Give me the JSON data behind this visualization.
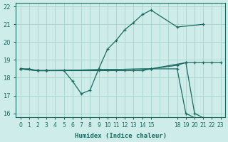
{
  "xlabel": "Humidex (Indice chaleur)",
  "ylabel": "",
  "bg_color": "#ceecea",
  "grid_color": "#aad6d2",
  "line_color": "#1a6b60",
  "xlim": [
    -0.5,
    23.5
  ],
  "ylim": [
    15.8,
    22.2
  ],
  "xtick_vals": [
    0,
    1,
    2,
    3,
    4,
    5,
    6,
    7,
    8,
    9,
    10,
    11,
    12,
    13,
    14,
    15,
    18,
    19,
    20,
    21,
    22,
    23
  ],
  "ytick_vals": [
    16,
    17,
    18,
    19,
    20,
    21,
    22
  ],
  "all_x_grid": [
    0,
    1,
    2,
    3,
    4,
    5,
    6,
    7,
    8,
    9,
    10,
    11,
    12,
    13,
    14,
    15,
    16,
    17,
    18,
    19,
    20,
    21,
    22,
    23
  ],
  "lines": [
    {
      "x": [
        0,
        1,
        2,
        3,
        5,
        9,
        10,
        11,
        12,
        13,
        14,
        15,
        18,
        19,
        20,
        21,
        22,
        23
      ],
      "y": [
        18.5,
        18.5,
        18.4,
        18.4,
        18.4,
        18.4,
        18.4,
        18.4,
        18.4,
        18.4,
        18.4,
        18.5,
        18.7,
        18.85,
        18.85,
        18.85,
        18.85,
        18.85
      ],
      "style": "-",
      "marker": "+"
    },
    {
      "x": [
        0,
        2,
        3,
        5,
        6,
        7,
        8,
        9,
        10,
        11,
        12,
        13,
        14,
        15,
        18,
        21
      ],
      "y": [
        18.5,
        18.4,
        18.4,
        18.4,
        17.8,
        17.1,
        17.3,
        18.5,
        19.6,
        20.1,
        20.7,
        21.1,
        21.55,
        21.8,
        20.85,
        21.0
      ],
      "style": "-",
      "marker": "+"
    },
    {
      "x": [
        0,
        2,
        3,
        15,
        19,
        20,
        21,
        22,
        23
      ],
      "y": [
        18.5,
        18.4,
        18.4,
        18.5,
        18.85,
        16.0,
        15.75,
        15.7,
        15.65
      ],
      "style": "-",
      "marker": "+"
    },
    {
      "x": [
        0,
        2,
        3,
        15,
        18,
        19,
        20,
        21,
        22,
        23
      ],
      "y": [
        18.5,
        18.4,
        18.4,
        18.5,
        18.5,
        16.0,
        15.75,
        15.7,
        15.65,
        15.6
      ],
      "style": "-",
      "marker": "+"
    }
  ]
}
